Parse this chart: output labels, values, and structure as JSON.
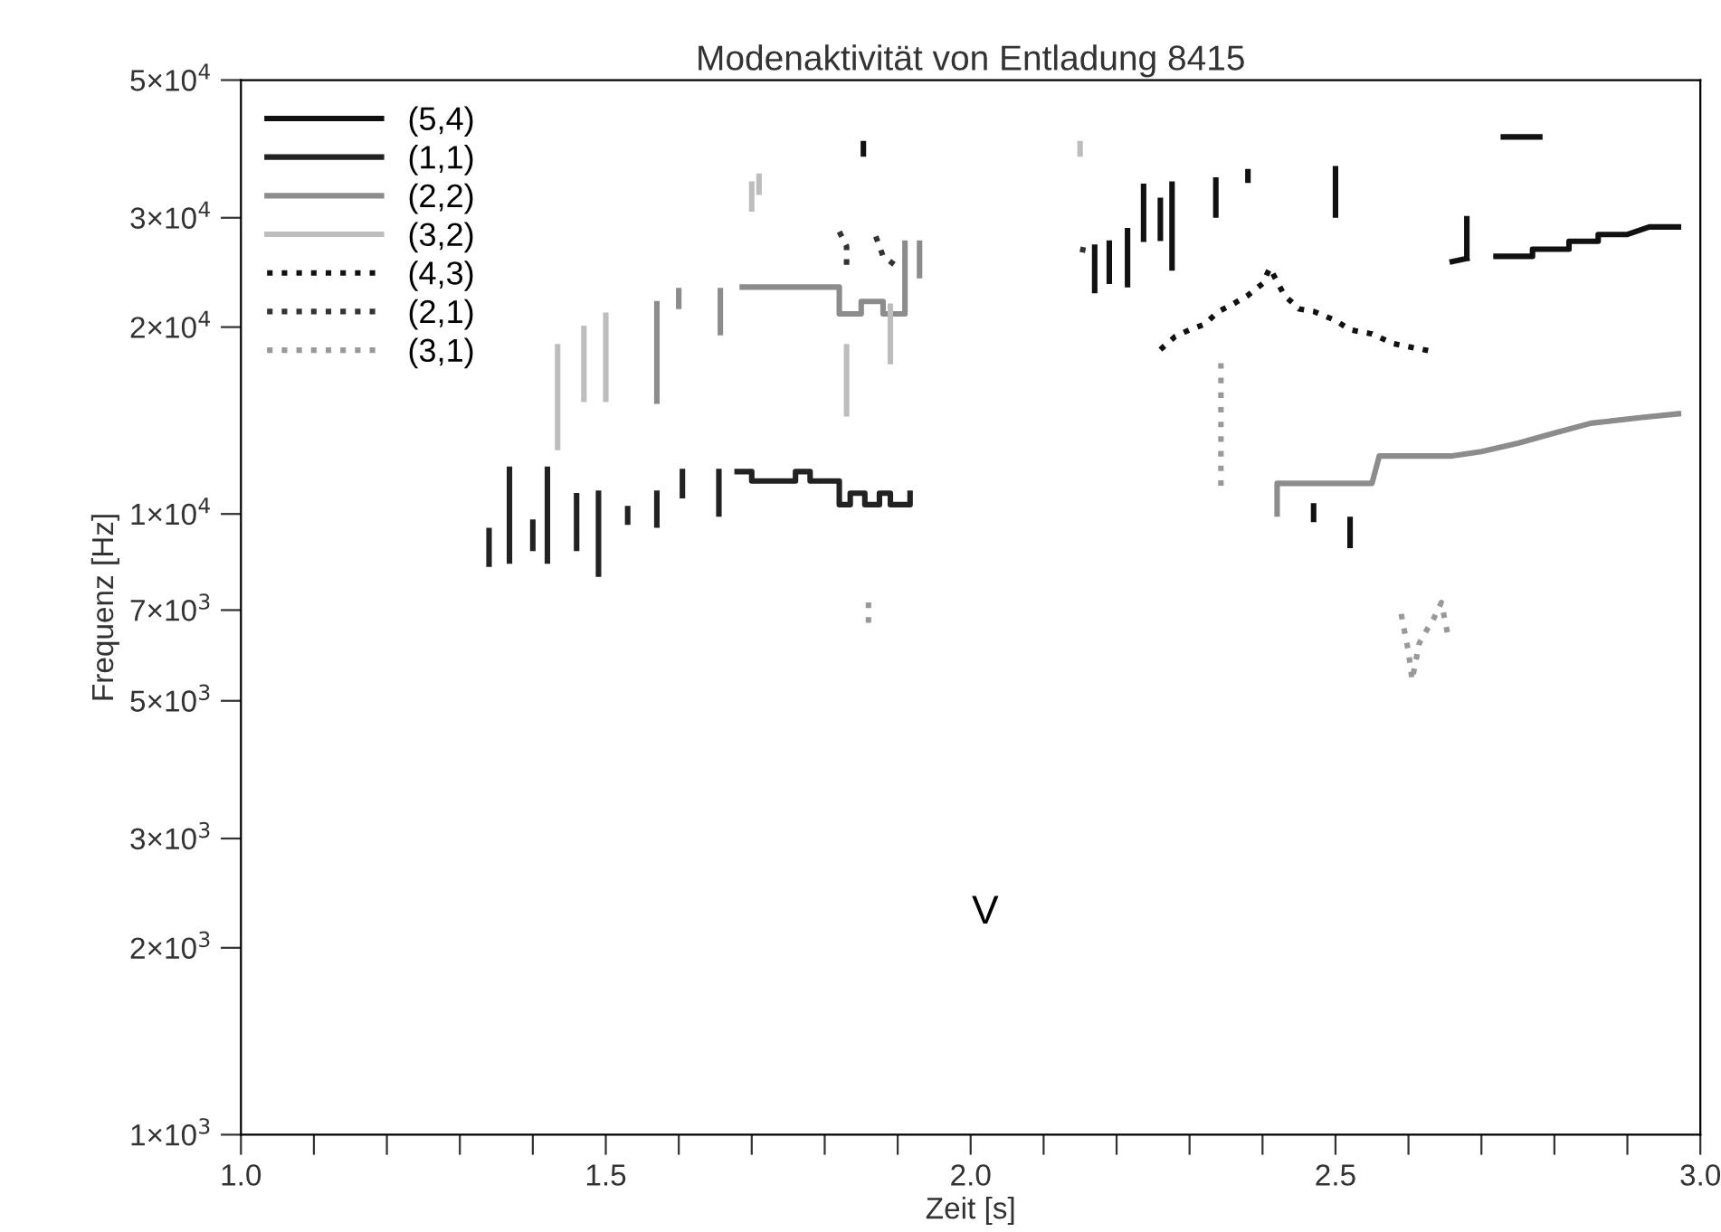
{
  "chart_data": {
    "type": "line",
    "title": "Modenaktivität von Entladung 8415",
    "xlabel": "Zeit [s]",
    "ylabel": "Frequenz [Hz]",
    "log": "y",
    "grid": false,
    "legend": "top left",
    "xlim": [
      1.0,
      3.0
    ],
    "ylim": [
      1000,
      50000
    ],
    "xticks": [
      {
        "value": 1.0,
        "label": "1.0"
      },
      {
        "value": 1.1,
        "label": null
      },
      {
        "value": 1.2,
        "label": null
      },
      {
        "value": 1.3,
        "label": null
      },
      {
        "value": 1.4,
        "label": null
      },
      {
        "value": 1.5,
        "label": "1.5"
      },
      {
        "value": 1.6,
        "label": null
      },
      {
        "value": 1.7,
        "label": null
      },
      {
        "value": 1.8,
        "label": null
      },
      {
        "value": 1.9,
        "label": null
      },
      {
        "value": 2.0,
        "label": "2.0"
      },
      {
        "value": 2.1,
        "label": null
      },
      {
        "value": 2.2,
        "label": null
      },
      {
        "value": 2.3,
        "label": null
      },
      {
        "value": 2.4,
        "label": null
      },
      {
        "value": 2.5,
        "label": "2.5"
      },
      {
        "value": 2.6,
        "label": null
      },
      {
        "value": 2.7,
        "label": null
      },
      {
        "value": 2.8,
        "label": null
      },
      {
        "value": 2.9,
        "label": null
      },
      {
        "value": 3.0,
        "label": "3.0"
      }
    ],
    "yticks": [
      {
        "value": 1000,
        "label": "1×10$^{3}$"
      },
      {
        "value": 2000,
        "label": "2×10$^{3}$"
      },
      {
        "value": 3000,
        "label": "3×10$^{3}$"
      },
      {
        "value": 5000,
        "label": "5×10$^{3}$"
      },
      {
        "value": 7000,
        "label": "7×10$^{3}$"
      },
      {
        "value": 10000,
        "label": "1×10$^{4}$"
      },
      {
        "value": 20000,
        "label": "2×10$^{4}$"
      },
      {
        "value": 30000,
        "label": "3×10$^{4}$"
      },
      {
        "value": 50000,
        "label": "5×10$^{4}$"
      }
    ],
    "annotations": [
      "V"
    ],
    "series": [
      {
        "name": "(5,4)",
        "color": "#111111",
        "line_style": "solid",
        "x": [
          2.17,
          2.17,
          null,
          2.19,
          2.19,
          null,
          2.215,
          2.215,
          null,
          2.237,
          2.237,
          null,
          2.26,
          2.26,
          null,
          2.276,
          2.276,
          null,
          2.336,
          2.336,
          null,
          2.38,
          2.38,
          null,
          2.5,
          2.5,
          null,
          1.853,
          1.853,
          null,
          2.47,
          2.47,
          null,
          2.52,
          2.52,
          null,
          2.66,
          2.68,
          null,
          2.68,
          2.68,
          null,
          2.72,
          2.77,
          2.77,
          2.82,
          2.82,
          2.86,
          2.86,
          2.9,
          2.93,
          2.97,
          null,
          2.73,
          2.78
        ],
        "values": [
          26900,
          22900,
          null,
          27300,
          23700,
          null,
          28600,
          23400,
          null,
          33700,
          27700,
          null,
          32000,
          27800,
          null,
          34000,
          24900,
          null,
          34500,
          30300,
          null,
          35600,
          34500,
          null,
          36000,
          30300,
          null,
          39500,
          38000,
          null,
          10300,
          9800,
          null,
          9800,
          8900,
          null,
          25500,
          25800,
          null,
          29900,
          25800,
          null,
          26000,
          26000,
          26700,
          26700,
          27500,
          27500,
          28200,
          28200,
          29000,
          29000,
          null,
          40500,
          40500
        ]
      },
      {
        "name": "(1,1)",
        "color": "#222222",
        "line_style": "solid",
        "x": [
          1.34,
          1.34,
          null,
          1.368,
          1.368,
          null,
          1.4,
          1.4,
          null,
          1.42,
          1.42,
          null,
          1.46,
          1.46,
          null,
          1.49,
          1.49,
          null,
          1.53,
          1.53,
          null,
          1.57,
          1.57,
          null,
          1.605,
          1.605,
          null,
          1.655,
          1.655,
          null,
          1.68,
          1.7,
          1.7,
          1.76,
          1.76,
          1.78,
          1.78,
          1.82,
          1.82,
          1.835,
          1.835,
          1.855,
          1.855,
          1.875,
          1.875,
          1.89,
          1.89,
          1.917,
          1.917
        ],
        "values": [
          9400,
          8300,
          null,
          11800,
          8400,
          null,
          9700,
          8800,
          null,
          11800,
          8400,
          null,
          10700,
          8800,
          null,
          10800,
          8000,
          null,
          10200,
          9700,
          null,
          10800,
          9600,
          null,
          11700,
          10700,
          null,
          11700,
          10000,
          null,
          11700,
          11700,
          11300,
          11300,
          11700,
          11700,
          11300,
          11300,
          10350,
          10350,
          10800,
          10800,
          10350,
          10350,
          10800,
          10800,
          10350,
          10350,
          10800
        ]
      },
      {
        "name": "(2,2)",
        "color": "#8c8c8c",
        "line_style": "solid",
        "x": [
          1.57,
          1.57,
          null,
          1.6,
          1.6,
          null,
          1.657,
          1.657,
          null,
          1.687,
          1.82,
          1.82,
          1.85,
          1.85,
          1.88,
          1.88,
          1.91,
          1.91,
          null,
          1.93,
          1.93,
          null,
          2.42,
          2.42,
          2.55,
          2.56,
          2.66,
          2.7,
          2.75,
          2.8,
          2.85,
          2.92,
          2.97
        ],
        "values": [
          21800,
          15200,
          null,
          22900,
          21600,
          null,
          22900,
          19600,
          null,
          23200,
          23200,
          21000,
          21000,
          22000,
          22000,
          21000,
          21000,
          27300,
          null,
          27300,
          24200,
          null,
          10000,
          11200,
          11200,
          12400,
          12400,
          12600,
          13000,
          13500,
          14000,
          14300,
          14500
        ]
      },
      {
        "name": "(3,2)",
        "color": "#bdbdbd",
        "line_style": "solid",
        "x": [
          1.434,
          1.434,
          null,
          1.47,
          1.47,
          null,
          1.5,
          1.5,
          null,
          1.83,
          1.83,
          null,
          1.89,
          1.89,
          null,
          1.7,
          1.7,
          null,
          1.71,
          1.71,
          null,
          2.15,
          2.15
        ],
        "values": [
          18600,
          12800,
          null,
          19900,
          15300,
          null,
          20900,
          15300,
          null,
          18600,
          14500,
          null,
          21600,
          17600,
          null,
          34000,
          31000,
          null,
          35000,
          33000,
          null,
          39500,
          38000
        ]
      },
      {
        "name": "(4,3)",
        "color": "#111111",
        "line_style": "dotted",
        "x": [
          2.26,
          2.28,
          2.3,
          2.32,
          2.34,
          2.36,
          2.38,
          2.4,
          2.41,
          2.43,
          2.45,
          2.47,
          2.5,
          2.52,
          2.55,
          2.58,
          2.61,
          2.63
        ],
        "values": [
          18400,
          19300,
          19800,
          20200,
          21200,
          21800,
          22500,
          23500,
          24900,
          22500,
          21400,
          21200,
          20500,
          19800,
          19500,
          18800,
          18500,
          18300
        ]
      },
      {
        "name": "(2,1)",
        "color": "#333333",
        "line_style": "dotted",
        "x": [
          1.82,
          1.83,
          1.83,
          null,
          1.87,
          1.88,
          1.9,
          null,
          2.15,
          2.17
        ],
        "values": [
          28500,
          27000,
          25000,
          null,
          28000,
          26000,
          25000,
          null,
          26700,
          26400
        ]
      },
      {
        "name": "(3,1)",
        "color": "#999999",
        "line_style": "dotted",
        "x": [
          2.59,
          2.6,
          2.605,
          2.615,
          2.625,
          2.635,
          2.645,
          2.655,
          null,
          1.86,
          1.86,
          null,
          2.343,
          2.343
        ],
        "values": [
          6900,
          6000,
          5400,
          6200,
          6500,
          6800,
          7200,
          6300,
          null,
          7200,
          6600,
          null,
          17500,
          10900
        ]
      }
    ]
  }
}
